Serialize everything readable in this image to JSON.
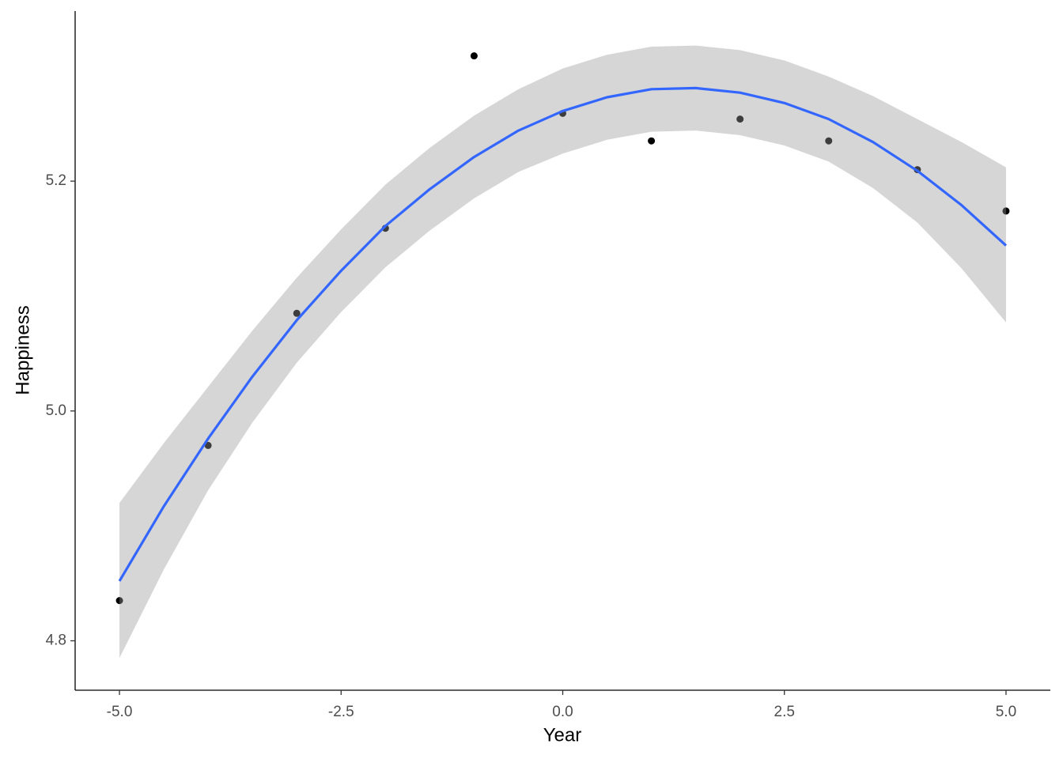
{
  "chart_data": {
    "type": "scatter",
    "x_label": "Year",
    "y_label": "Happiness",
    "xlim": [
      -5.5,
      5.5
    ],
    "ylim": [
      4.757,
      5.348
    ],
    "xticks": [
      {
        "value": -5,
        "label": "-5.0"
      },
      -2.5,
      {
        "value": 0,
        "label": "0.0"
      },
      2.5,
      {
        "value": 5,
        "label": "5.0"
      }
    ],
    "yticks": [
      4.8,
      {
        "value": 5,
        "label": "5.0"
      },
      5.2
    ],
    "points": {
      "color": "#000000",
      "x": [
        -5,
        -4,
        -3,
        -2,
        -1,
        0,
        1,
        2,
        3,
        4,
        5
      ],
      "y": [
        4.835,
        4.97,
        5.085,
        5.159,
        5.309,
        5.259,
        5.235,
        5.254,
        5.235,
        5.21,
        5.174
      ]
    },
    "fit": {
      "color": "#3366FF",
      "band_color": "#999999",
      "x": [
        -5,
        -4.5,
        -4,
        -3.5,
        -3,
        -2.5,
        -2,
        -1.5,
        -1,
        -0.5,
        0,
        0.5,
        1,
        1.5,
        2,
        2.5,
        3,
        3.5,
        4,
        4.5,
        5
      ],
      "y": [
        4.852,
        4.917,
        4.976,
        5.03,
        5.079,
        5.122,
        5.161,
        5.193,
        5.221,
        5.244,
        5.261,
        5.273,
        5.28,
        5.281,
        5.277,
        5.268,
        5.254,
        5.234,
        5.209,
        5.179,
        5.144
      ],
      "lower": [
        4.785,
        4.862,
        4.931,
        4.99,
        5.042,
        5.086,
        5.125,
        5.157,
        5.185,
        5.208,
        5.224,
        5.236,
        5.243,
        5.244,
        5.24,
        5.231,
        5.217,
        5.194,
        5.164,
        5.124,
        5.077
      ],
      "upper": [
        4.92,
        4.972,
        5.021,
        5.07,
        5.116,
        5.158,
        5.197,
        5.229,
        5.257,
        5.28,
        5.298,
        5.31,
        5.317,
        5.318,
        5.314,
        5.305,
        5.291,
        5.274,
        5.254,
        5.234,
        5.212
      ]
    }
  }
}
